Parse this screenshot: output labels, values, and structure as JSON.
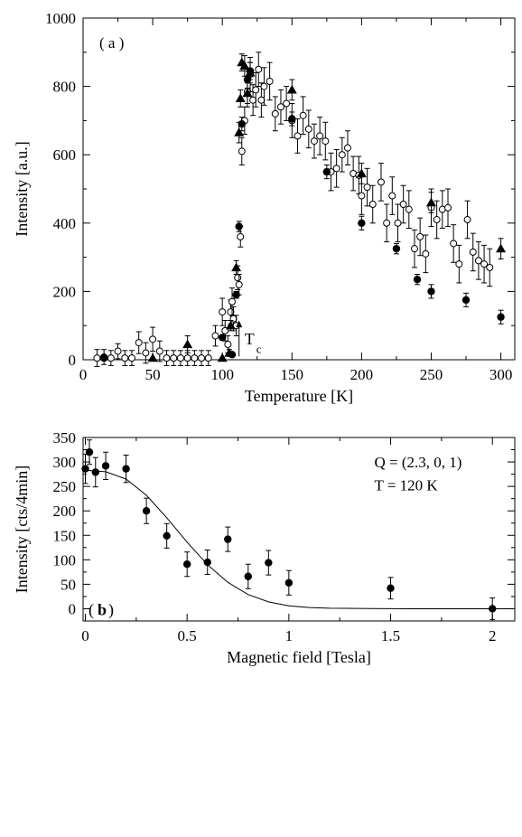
{
  "chart_data": [
    {
      "panel_label": "( a )",
      "type": "scatter",
      "title": "",
      "xlabel": "Temperature [K]",
      "ylabel": "Intensity [a.u.]",
      "xlim": [
        0,
        310
      ],
      "ylim": [
        0,
        1000
      ],
      "xticks": [
        0,
        50,
        100,
        150,
        200,
        250,
        300
      ],
      "yticks": [
        0,
        200,
        400,
        600,
        800,
        1000
      ],
      "annotation": {
        "text": "T",
        "subscript": "c",
        "x": 112
      },
      "series": [
        {
          "marker": "open-circle",
          "points": [
            [
              10,
              5,
              25
            ],
            [
              15,
              8,
              22
            ],
            [
              20,
              5,
              22
            ],
            [
              25,
              25,
              22
            ],
            [
              30,
              5,
              22
            ],
            [
              35,
              5,
              22
            ],
            [
              40,
              50,
              32
            ],
            [
              45,
              20,
              30
            ],
            [
              50,
              60,
              35
            ],
            [
              55,
              25,
              30
            ],
            [
              60,
              5,
              22
            ],
            [
              65,
              5,
              22
            ],
            [
              70,
              5,
              22
            ],
            [
              75,
              5,
              22
            ],
            [
              80,
              5,
              22
            ],
            [
              85,
              5,
              22
            ],
            [
              90,
              5,
              22
            ],
            [
              95,
              70,
              30
            ],
            [
              100,
              140,
              40
            ],
            [
              102,
              85,
              30
            ],
            [
              104,
              45,
              25
            ],
            [
              106,
              140,
              35
            ],
            [
              107,
              170,
              40
            ],
            [
              108,
              120,
              35
            ],
            [
              110,
              100,
              30
            ],
            [
              111,
              240,
              35
            ],
            [
              112,
              220,
              30
            ],
            [
              113,
              360,
              30
            ],
            [
              114,
              610,
              40
            ],
            [
              116,
              700,
              40
            ],
            [
              118,
              785,
              45
            ],
            [
              120,
              835,
              50
            ],
            [
              122,
              760,
              45
            ],
            [
              124,
              790,
              50
            ],
            [
              126,
              850,
              50
            ],
            [
              128,
              760,
              50
            ],
            [
              130,
              800,
              55
            ],
            [
              134,
              815,
              55
            ],
            [
              138,
              720,
              50
            ],
            [
              142,
              740,
              50
            ],
            [
              146,
              750,
              50
            ],
            [
              150,
              700,
              50
            ],
            [
              154,
              655,
              50
            ],
            [
              158,
              715,
              55
            ],
            [
              162,
              675,
              55
            ],
            [
              166,
              640,
              50
            ],
            [
              170,
              655,
              55
            ],
            [
              174,
              640,
              55
            ],
            [
              178,
              550,
              55
            ],
            [
              182,
              560,
              55
            ],
            [
              186,
              600,
              50
            ],
            [
              190,
              620,
              50
            ],
            [
              194,
              545,
              50
            ],
            [
              198,
              540,
              55
            ],
            [
              200,
              480,
              55
            ],
            [
              204,
              505,
              55
            ],
            [
              208,
              455,
              55
            ],
            [
              214,
              520,
              55
            ],
            [
              218,
              400,
              55
            ],
            [
              222,
              480,
              55
            ],
            [
              226,
              400,
              55
            ],
            [
              230,
              455,
              55
            ],
            [
              234,
              440,
              55
            ],
            [
              238,
              325,
              55
            ],
            [
              242,
              360,
              55
            ],
            [
              246,
              310,
              55
            ],
            [
              250,
              445,
              55
            ],
            [
              254,
              410,
              55
            ],
            [
              258,
              440,
              55
            ],
            [
              262,
              445,
              55
            ],
            [
              266,
              340,
              55
            ],
            [
              270,
              280,
              55
            ],
            [
              276,
              410,
              55
            ],
            [
              280,
              315,
              55
            ],
            [
              284,
              290,
              55
            ],
            [
              288,
              280,
              55
            ],
            [
              292,
              270,
              55
            ]
          ]
        },
        {
          "marker": "filled-circle",
          "points": [
            [
              15,
              5,
              0
            ],
            [
              100,
              65,
              0
            ],
            [
              107,
              15,
              0
            ],
            [
              110,
              190,
              10
            ],
            [
              112,
              390,
              15
            ],
            [
              114,
              690,
              20
            ],
            [
              118,
              820,
              25
            ],
            [
              120,
              845,
              25
            ],
            [
              150,
              705,
              20
            ],
            [
              175,
              550,
              20
            ],
            [
              200,
              400,
              20
            ],
            [
              225,
              325,
              15
            ],
            [
              240,
              235,
              15
            ],
            [
              250,
              200,
              20
            ],
            [
              275,
              175,
              20
            ],
            [
              300,
              125,
              20
            ]
          ]
        },
        {
          "marker": "filled-triangle",
          "points": [
            [
              50,
              5,
              0
            ],
            [
              75,
              45,
              25
            ],
            [
              100,
              5,
              0
            ],
            [
              105,
              20,
              10
            ],
            [
              106,
              100,
              15
            ],
            [
              110,
              270,
              20
            ],
            [
              112,
              665,
              30
            ],
            [
              113,
              765,
              25
            ],
            [
              114,
              870,
              25
            ],
            [
              116,
              860,
              30
            ],
            [
              118,
              780,
              30
            ],
            [
              120,
              840,
              30
            ],
            [
              150,
              790,
              30
            ],
            [
              200,
              545,
              30
            ],
            [
              250,
              460,
              30
            ],
            [
              300,
              325,
              30
            ]
          ]
        }
      ]
    },
    {
      "panel_label": "b",
      "type": "scatter",
      "title": "",
      "xlabel": "Magnetic field [Tesla]",
      "ylabel": "Intensity [cts/4min]",
      "xlim": [
        -0.0111,
        2.11
      ],
      "ylim": [
        -25,
        350
      ],
      "xticks": [
        0,
        0.5,
        1,
        1.5,
        2
      ],
      "xticklabels": [
        "0",
        "0.5",
        "1",
        "1.5",
        "2"
      ],
      "yticks": [
        0,
        50,
        100,
        150,
        200,
        250,
        300,
        350
      ],
      "annotations": [
        "Q = (2.3, 0, 1)",
        "T = 120 K"
      ],
      "series": [
        {
          "marker": "filled-circle",
          "points": [
            [
              0,
              286,
              30
            ],
            [
              0.02,
              320,
              25
            ],
            [
              0.05,
              279,
              30
            ],
            [
              0.1,
              292,
              28
            ],
            [
              0.2,
              286,
              28
            ],
            [
              0.3,
              200,
              26
            ],
            [
              0.4,
              149,
              25
            ],
            [
              0.5,
              91,
              25
            ],
            [
              0.6,
              95,
              25
            ],
            [
              0.7,
              142,
              25
            ],
            [
              0.8,
              66,
              25
            ],
            [
              0.9,
              94,
              25
            ],
            [
              1.0,
              53,
              25
            ],
            [
              1.5,
              42,
              22
            ],
            [
              2.0,
              0,
              22
            ]
          ]
        },
        {
          "marker": "fit-line",
          "points": [
            [
              0,
              283
            ],
            [
              0.1,
              280
            ],
            [
              0.2,
              265
            ],
            [
              0.3,
              232
            ],
            [
              0.4,
              186
            ],
            [
              0.5,
              136
            ],
            [
              0.6,
              90
            ],
            [
              0.7,
              54
            ],
            [
              0.8,
              29
            ],
            [
              0.9,
              14
            ],
            [
              1.0,
              6
            ],
            [
              1.1,
              2.5
            ],
            [
              1.2,
              1
            ],
            [
              1.4,
              0.3
            ],
            [
              1.6,
              0
            ],
            [
              2.1,
              0
            ]
          ]
        }
      ]
    }
  ]
}
